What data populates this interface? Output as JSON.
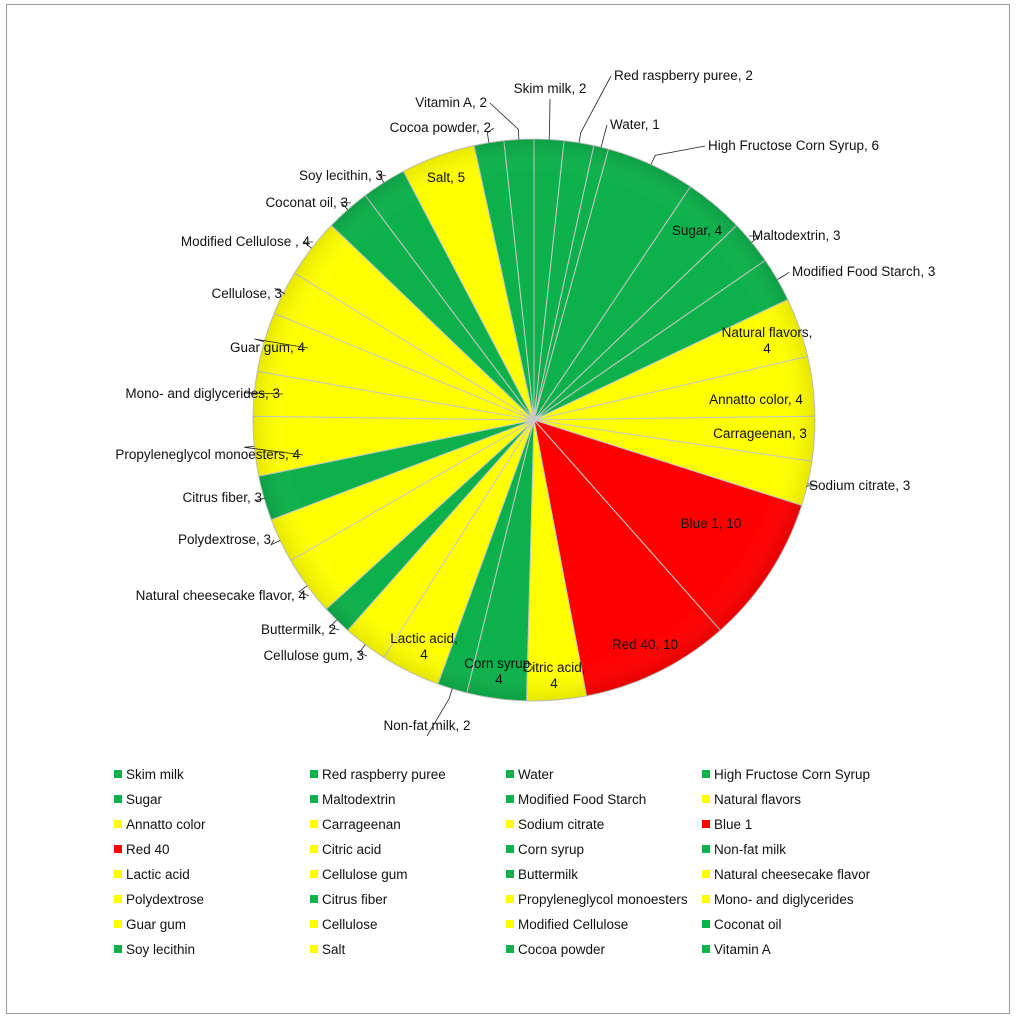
{
  "chart_data": {
    "type": "pie",
    "title": "",
    "colors": {
      "green": "#0db14b",
      "yellow": "#ffff00",
      "red": "#ff0000"
    },
    "slices": [
      {
        "name": "Skim milk",
        "value": 2,
        "color": "green",
        "label": "Skim milk, 2"
      },
      {
        "name": "Red raspberry puree",
        "value": 2,
        "color": "green",
        "label": "Red raspberry puree, 2"
      },
      {
        "name": "Water",
        "value": 1,
        "color": "green",
        "label": "Water, 1"
      },
      {
        "name": "High Fructose Corn Syrup",
        "value": 6,
        "color": "green",
        "label": "High Fructose Corn Syrup, 6"
      },
      {
        "name": "Sugar",
        "value": 4,
        "color": "green",
        "label": "Sugar, 4"
      },
      {
        "name": "Maltodextrin",
        "value": 3,
        "color": "green",
        "label": "Maltodextrin, 3"
      },
      {
        "name": "Modified Food Starch",
        "value": 3,
        "color": "green",
        "label": "Modified Food Starch, 3"
      },
      {
        "name": "Natural flavors",
        "value": 4,
        "color": "yellow",
        "label": "Natural flavors, 4"
      },
      {
        "name": "Annatto color",
        "value": 4,
        "color": "yellow",
        "label": "Annatto color, 4"
      },
      {
        "name": "Carrageenan",
        "value": 3,
        "color": "yellow",
        "label": "Carrageenan, 3"
      },
      {
        "name": "Sodium citrate",
        "value": 3,
        "color": "yellow",
        "label": "Sodium citrate, 3"
      },
      {
        "name": "Blue 1",
        "value": 10,
        "color": "red",
        "label": "Blue 1, 10"
      },
      {
        "name": "Red 40",
        "value": 10,
        "color": "red",
        "label": "Red 40, 10"
      },
      {
        "name": "Citric acid",
        "value": 4,
        "color": "yellow",
        "label": "Citric acid, 4"
      },
      {
        "name": "Corn syrup",
        "value": 4,
        "color": "green",
        "label": "Corn syrup, 4"
      },
      {
        "name": "Non-fat milk",
        "value": 2,
        "color": "green",
        "label": "Non-fat milk, 2"
      },
      {
        "name": "Lactic acid",
        "value": 4,
        "color": "yellow",
        "label": "Lactic acid, 4"
      },
      {
        "name": "Cellulose gum",
        "value": 3,
        "color": "yellow",
        "label": "Cellulose gum, 3"
      },
      {
        "name": "Buttermilk",
        "value": 2,
        "color": "green",
        "label": "Buttermilk, 2"
      },
      {
        "name": "Natural cheesecake flavor",
        "value": 4,
        "color": "yellow",
        "label": "Natural cheesecake flavor, 4"
      },
      {
        "name": "Polydextrose",
        "value": 3,
        "color": "yellow",
        "label": "Polydextrose, 3"
      },
      {
        "name": "Citrus fiber",
        "value": 3,
        "color": "green",
        "label": "Citrus fiber, 3"
      },
      {
        "name": "Propyleneglycol monoesters",
        "value": 4,
        "color": "yellow",
        "label": "Propyleneglycol monoesters, 4"
      },
      {
        "name": "Mono- and diglycerides",
        "value": 3,
        "color": "yellow",
        "label": "Mono- and diglycerides, 3"
      },
      {
        "name": "Guar gum",
        "value": 4,
        "color": "yellow",
        "label": "Guar gum, 4"
      },
      {
        "name": "Cellulose",
        "value": 3,
        "color": "yellow",
        "label": "Cellulose, 3"
      },
      {
        "name": "Modified Cellulose",
        "value": 4,
        "color": "yellow",
        "label": "Modified Cellulose , 4"
      },
      {
        "name": "Coconat oil",
        "value": 3,
        "color": "green",
        "label": "Coconat oil, 3"
      },
      {
        "name": "Soy lecithin",
        "value": 3,
        "color": "green",
        "label": "Soy lecithin, 3"
      },
      {
        "name": "Salt",
        "value": 5,
        "color": "yellow",
        "label": "Salt, 5"
      },
      {
        "name": "Cocoa powder",
        "value": 2,
        "color": "green",
        "label": "Cocoa powder, 2"
      },
      {
        "name": "Vitamin A",
        "value": 2,
        "color": "green",
        "label": "Vitamin A, 2"
      }
    ],
    "legend_position": "bottom"
  }
}
